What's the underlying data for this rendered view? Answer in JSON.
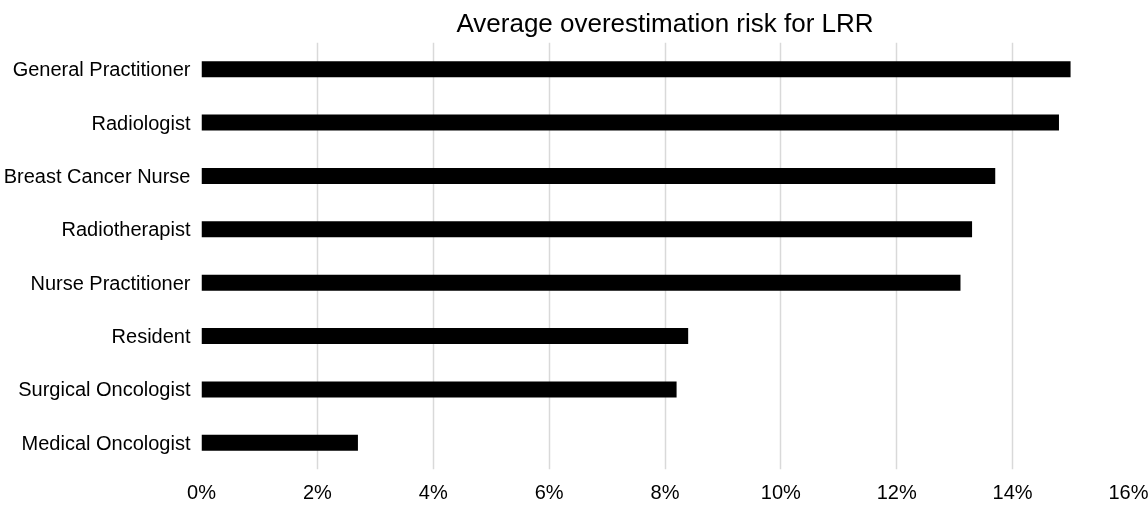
{
  "chart_data": {
    "type": "bar",
    "orientation": "horizontal",
    "title": "Average overestimation risk for LRR",
    "categories": [
      "General Practitioner",
      "Radiologist",
      "Breast Cancer Nurse",
      "Radiotherapist",
      "Nurse Practitioner",
      "Resident",
      "Surgical Oncologist",
      "Medical Oncologist"
    ],
    "values": [
      15.0,
      14.8,
      13.7,
      13.3,
      13.1,
      8.4,
      8.2,
      2.7
    ],
    "color": "#000000",
    "xlim": [
      0,
      16
    ],
    "xticks": [
      {
        "value": 0,
        "label": "0%"
      },
      {
        "value": 2,
        "label": "2%"
      },
      {
        "value": 4,
        "label": "4%"
      },
      {
        "value": 6,
        "label": "6%"
      },
      {
        "value": 8,
        "label": "8%"
      },
      {
        "value": 10,
        "label": "10%"
      },
      {
        "value": 12,
        "label": "12%"
      },
      {
        "value": 14,
        "label": "14%"
      },
      {
        "value": 16,
        "label": "16%"
      }
    ],
    "grid": "x"
  }
}
